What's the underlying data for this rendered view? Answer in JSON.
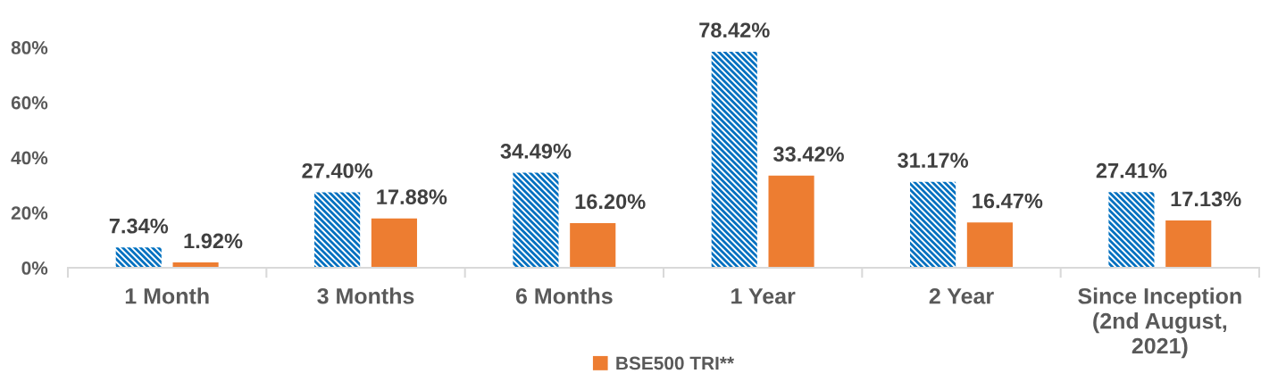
{
  "chart_data": {
    "type": "bar",
    "categories": [
      "1 Month",
      "3 Months",
      "6 Months",
      "1 Year",
      "2 Year",
      "Since Inception\n(2nd August,\n2021)"
    ],
    "series": [
      {
        "color": "#0070c0",
        "values": [
          7.34,
          27.4,
          34.49,
          78.42,
          31.17,
          27.41
        ],
        "value_labels": [
          "7.34%",
          "27.40%",
          "34.49%",
          "78.42%",
          "31.17%",
          "27.41%"
        ]
      },
      {
        "name": "BSE500 TRI**",
        "color": "#ed7d31",
        "values": [
          1.92,
          17.88,
          16.2,
          33.42,
          16.47,
          17.13
        ],
        "value_labels": [
          "1.92%",
          "17.88%",
          "16.20%",
          "33.42%",
          "16.47%",
          "17.13%"
        ]
      }
    ],
    "ylim": [
      0,
      80
    ],
    "yticks": [
      {
        "value": 0,
        "label": "0%"
      },
      {
        "value": 20,
        "label": "20%"
      },
      {
        "value": 40,
        "label": "40%"
      },
      {
        "value": 60,
        "label": "60%"
      },
      {
        "value": 80,
        "label": "80%"
      }
    ],
    "grid": false,
    "legend": "bottom"
  }
}
